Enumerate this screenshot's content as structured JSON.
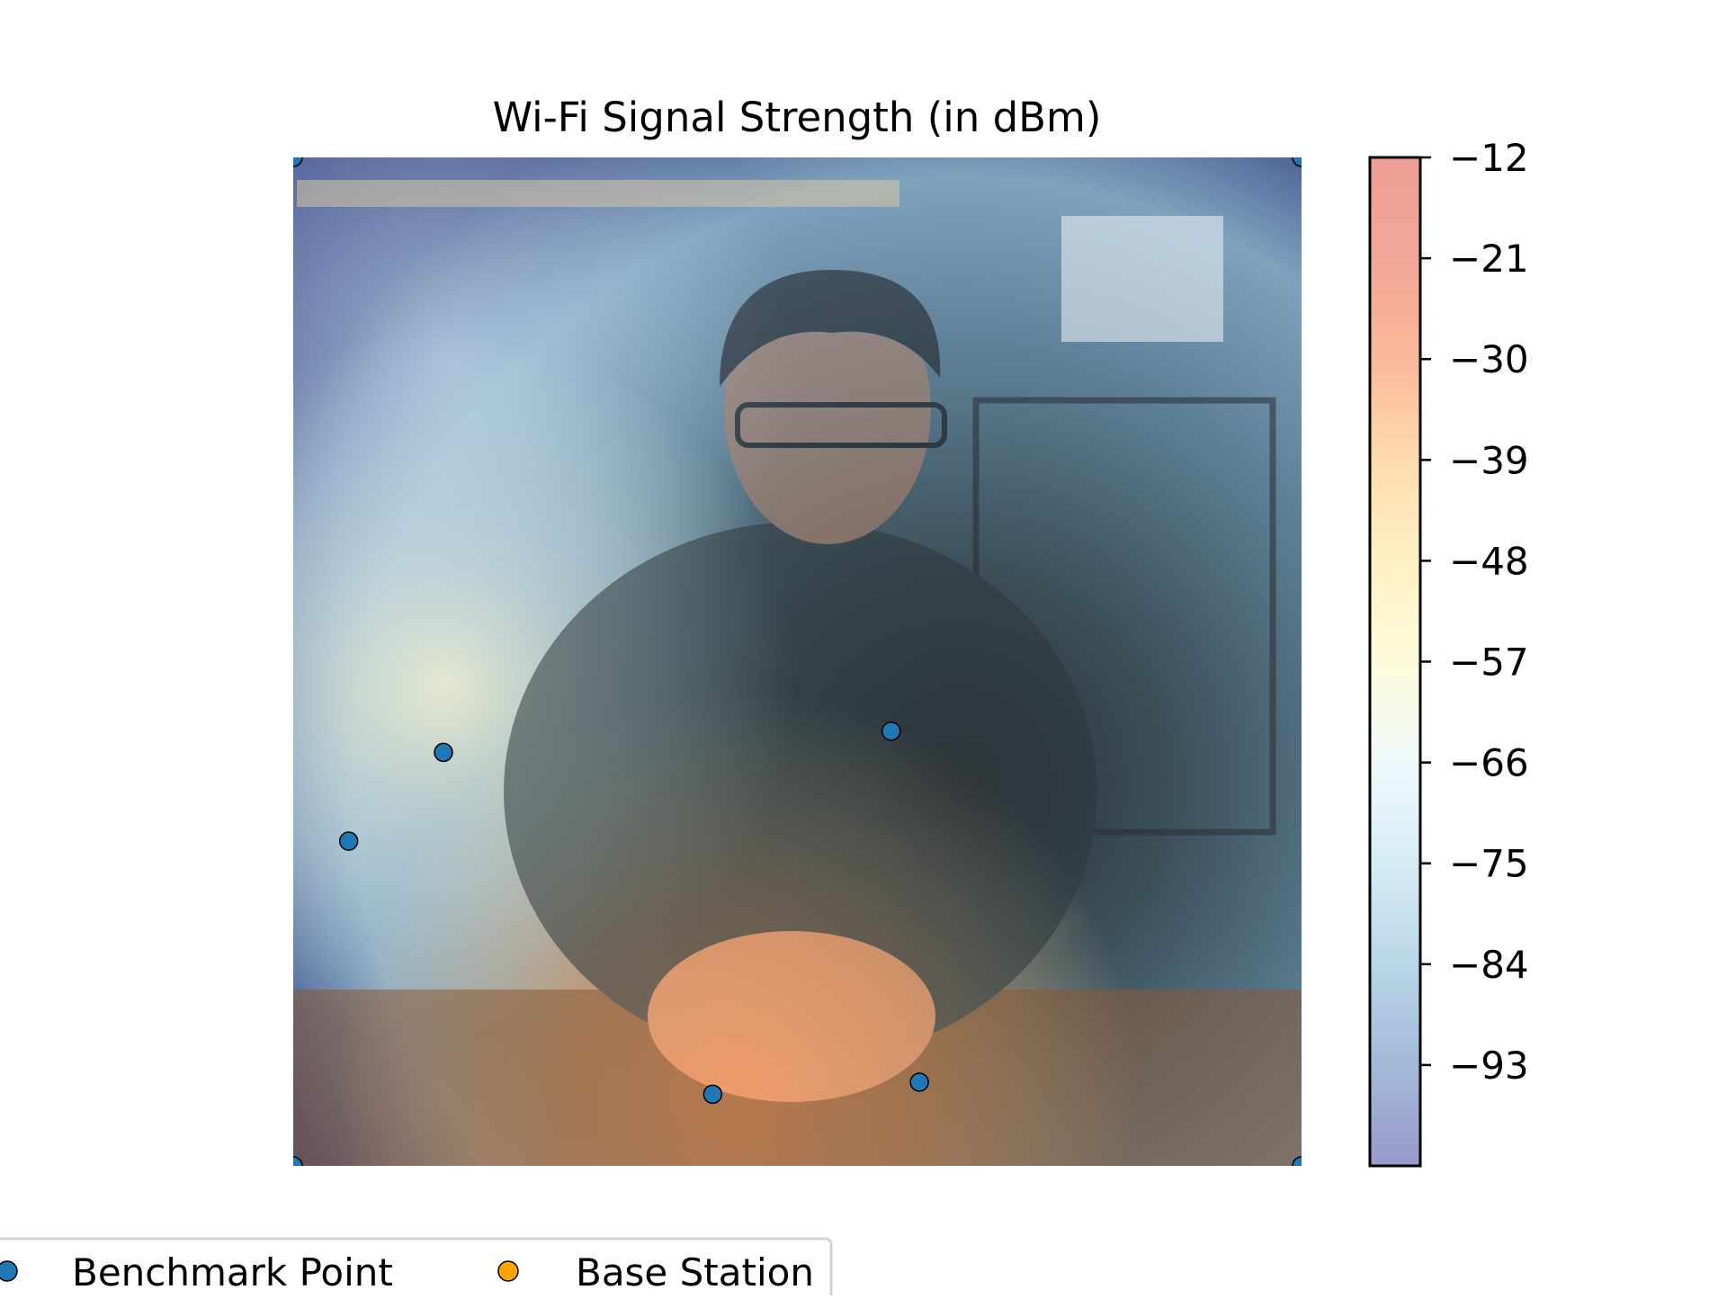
{
  "chart_data": {
    "type": "heatmap",
    "title": "Wi-Fi Signal Strength (in dBm)",
    "xlabel": "",
    "ylabel": "",
    "background": "photo of a young man with glasses and a denim vest sitting at a wooden table in a cafe",
    "grid": false,
    "colorbar": {
      "range": [
        -102,
        -12
      ],
      "ticks": [
        -12,
        -21,
        -30,
        -39,
        -48,
        -57,
        -66,
        -75,
        -84,
        -93
      ],
      "tick_labels": [
        "−12",
        "−21",
        "−30",
        "−39",
        "−48",
        "−57",
        "−66",
        "−75",
        "−84",
        "−93"
      ],
      "colormap": "RdYlBu_r",
      "alpha": 0.5,
      "stops": [
        "#313695",
        "#4575b4",
        "#74add1",
        "#abd9e9",
        "#e0f3f8",
        "#ffffbf",
        "#fee090",
        "#fdae61",
        "#f46d43",
        "#d73027",
        "#a50026"
      ]
    },
    "xlim": [
      0,
      1
    ],
    "ylim": [
      0,
      1
    ],
    "benchmark_points": [
      {
        "x": 0.0,
        "y": 1.0
      },
      {
        "x": 1.0,
        "y": 1.0
      },
      {
        "x": 0.0,
        "y": 0.0
      },
      {
        "x": 1.0,
        "y": 0.0
      },
      {
        "x": 0.149,
        "y": 0.41
      },
      {
        "x": 0.055,
        "y": 0.322
      },
      {
        "x": 0.593,
        "y": 0.431
      },
      {
        "x": 0.416,
        "y": 0.071
      },
      {
        "x": 0.621,
        "y": 0.083
      }
    ],
    "base_station_points": [],
    "legend": {
      "placement": "bottom-left",
      "entries": [
        {
          "label": "Benchmark Point",
          "color": "#1f77b4"
        },
        {
          "label": "Base Station",
          "color": "#ffa500"
        }
      ]
    }
  }
}
